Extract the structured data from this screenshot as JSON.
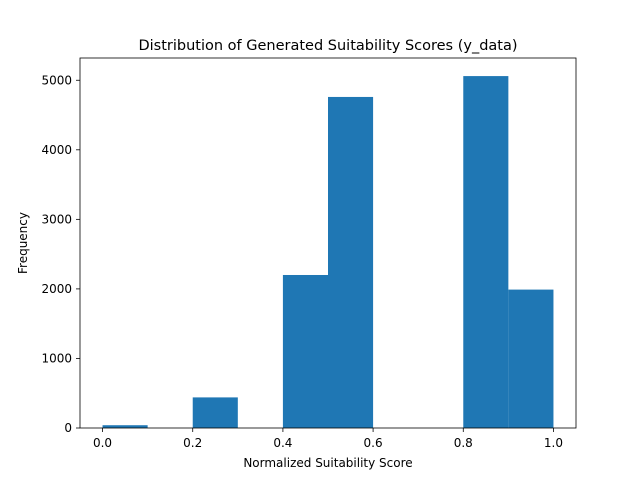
{
  "chart_data": {
    "type": "bar",
    "title": "Distribution of Generated Suitability Scores (y_data)",
    "xlabel": "Normalized Suitability Score",
    "ylabel": "Frequency",
    "xlim": [
      -0.05,
      1.05
    ],
    "ylim": [
      0,
      5320
    ],
    "xticks": [
      "0.0",
      "0.2",
      "0.4",
      "0.6",
      "0.8",
      "1.0"
    ],
    "yticks": [
      "0",
      "1000",
      "2000",
      "3000",
      "4000",
      "5000"
    ],
    "bins": [
      {
        "start": 0.0,
        "end": 0.1,
        "value": 40
      },
      {
        "start": 0.1,
        "end": 0.2,
        "value": 0
      },
      {
        "start": 0.2,
        "end": 0.3,
        "value": 440
      },
      {
        "start": 0.3,
        "end": 0.4,
        "value": 0
      },
      {
        "start": 0.4,
        "end": 0.5,
        "value": 2200
      },
      {
        "start": 0.5,
        "end": 0.6,
        "value": 4760
      },
      {
        "start": 0.6,
        "end": 0.7,
        "value": 0
      },
      {
        "start": 0.7,
        "end": 0.8,
        "value": 0
      },
      {
        "start": 0.8,
        "end": 0.9,
        "value": 5060
      },
      {
        "start": 0.9,
        "end": 1.0,
        "value": 1990
      }
    ],
    "bar_color": "#1f77b4",
    "grid": false,
    "legend": "none"
  }
}
